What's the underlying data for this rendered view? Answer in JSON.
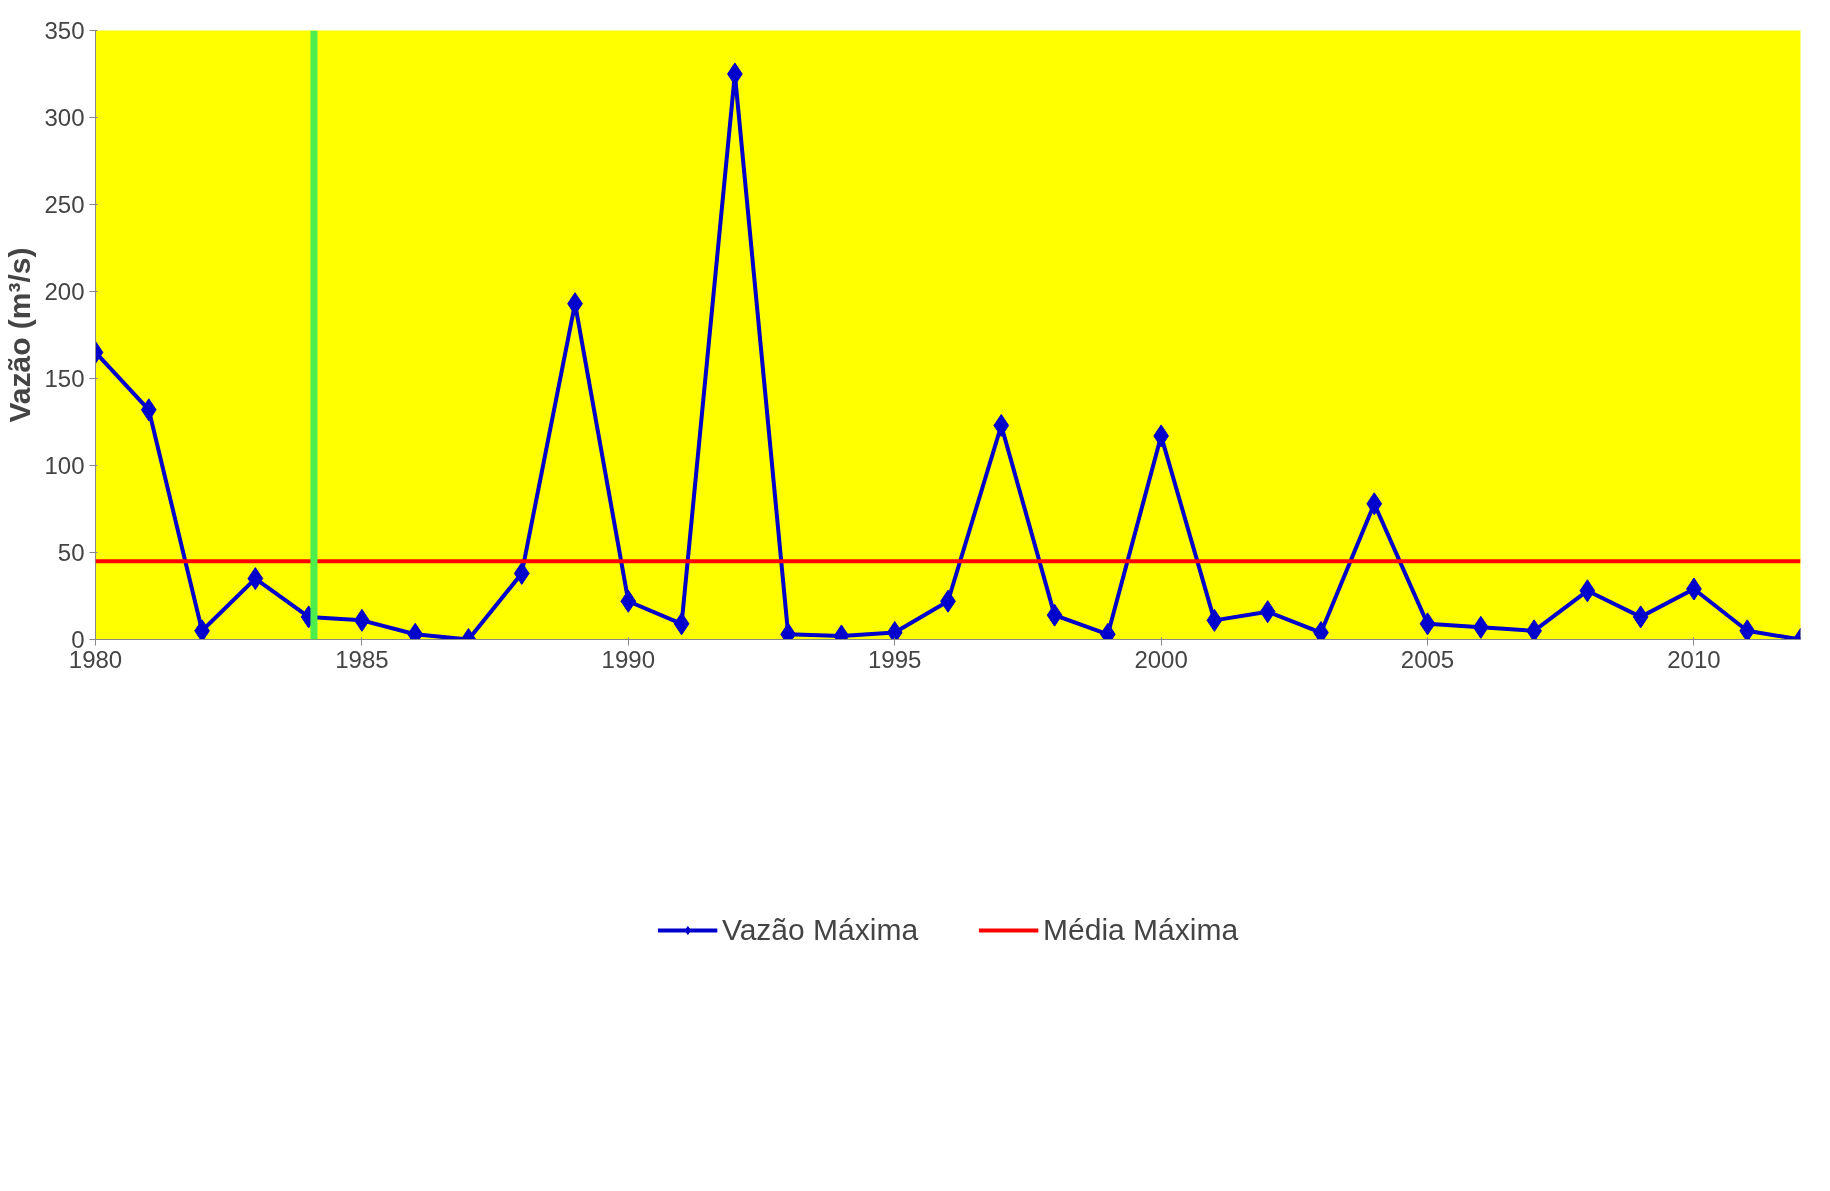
{
  "chart_data": {
    "type": "line",
    "ylabel": "Vazão (m³/s)",
    "x": [
      1980,
      1981,
      1982,
      1983,
      1984,
      1985,
      1986,
      1987,
      1988,
      1989,
      1990,
      1991,
      1992,
      1993,
      1994,
      1995,
      1996,
      1997,
      1998,
      1999,
      2000,
      2001,
      2002,
      2003,
      2004,
      2005,
      2006,
      2007,
      2008,
      2009,
      2010,
      2011,
      2012
    ],
    "series": [
      {
        "name": "Vazão Máxima",
        "color": "#0000cc",
        "values": [
          165,
          132,
          5,
          35,
          13,
          11,
          3,
          0,
          38,
          193,
          22,
          9,
          325,
          3,
          2,
          4,
          22,
          123,
          14,
          3,
          117,
          11,
          16,
          4,
          78,
          9,
          7,
          5,
          28,
          13,
          29,
          5,
          0
        ]
      }
    ],
    "ref_lines": [
      {
        "axis": "y",
        "value": 45,
        "label": "Média Máxima",
        "color": "#ff0000"
      },
      {
        "axis": "x",
        "value": 1984.1,
        "label": null,
        "color": "#4cee4c"
      }
    ],
    "xlim": [
      1980,
      2012
    ],
    "xticks": [
      1980,
      1985,
      1990,
      1995,
      2000,
      2005,
      2010
    ],
    "ylim": [
      0,
      350
    ],
    "yticks": [
      0,
      50,
      100,
      150,
      200,
      250,
      300,
      350
    ],
    "marker": "diamond",
    "line_style": "solid",
    "grid": false,
    "legend": "bottom"
  }
}
